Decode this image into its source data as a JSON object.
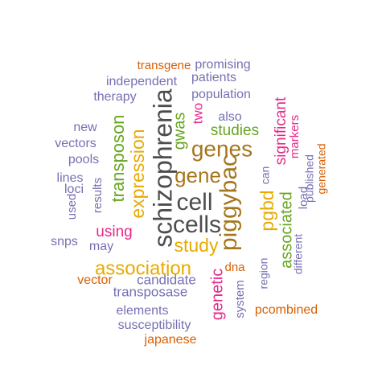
{
  "palette": {
    "gray": "#4D4D4D",
    "orange": "#D95F02",
    "purple": "#7570B3",
    "pink": "#E7298A",
    "green": "#66A61E",
    "gold": "#E6AB02",
    "brown": "#A6761D"
  },
  "words": [
    {
      "text": "schizophrenia",
      "color": "gray"
    },
    {
      "text": "cell",
      "color": "gray"
    },
    {
      "text": "cells",
      "color": "gray"
    },
    {
      "text": "piggybac",
      "color": "brown"
    },
    {
      "text": "genes",
      "color": "brown"
    },
    {
      "text": "gene",
      "color": "brown"
    },
    {
      "text": "association",
      "color": "gold"
    },
    {
      "text": "expression",
      "color": "gold"
    },
    {
      "text": "study",
      "color": "gold"
    },
    {
      "text": "pgbd",
      "color": "gold"
    },
    {
      "text": "transposon",
      "color": "green"
    },
    {
      "text": "studies",
      "color": "green"
    },
    {
      "text": "associated",
      "color": "green"
    },
    {
      "text": "gwas",
      "color": "green"
    },
    {
      "text": "significant",
      "color": "pink"
    },
    {
      "text": "genetic",
      "color": "pink"
    },
    {
      "text": "using",
      "color": "pink"
    },
    {
      "text": "two",
      "color": "pink"
    },
    {
      "text": "markers",
      "color": "pink"
    },
    {
      "text": "transgene",
      "color": "orange"
    },
    {
      "text": "promising",
      "color": "purple"
    },
    {
      "text": "patients",
      "color": "purple"
    },
    {
      "text": "independent",
      "color": "purple"
    },
    {
      "text": "population",
      "color": "purple"
    },
    {
      "text": "therapy",
      "color": "purple"
    },
    {
      "text": "also",
      "color": "purple"
    },
    {
      "text": "new",
      "color": "purple"
    },
    {
      "text": "vectors",
      "color": "purple"
    },
    {
      "text": "pools",
      "color": "purple"
    },
    {
      "text": "lines",
      "color": "purple"
    },
    {
      "text": "loci",
      "color": "purple"
    },
    {
      "text": "used",
      "color": "purple"
    },
    {
      "text": "results",
      "color": "purple"
    },
    {
      "text": "snps",
      "color": "purple"
    },
    {
      "text": "may",
      "color": "purple"
    },
    {
      "text": "vector",
      "color": "orange"
    },
    {
      "text": "candidate",
      "color": "purple"
    },
    {
      "text": "transposase",
      "color": "purple"
    },
    {
      "text": "elements",
      "color": "purple"
    },
    {
      "text": "susceptibility",
      "color": "purple"
    },
    {
      "text": "japanese",
      "color": "orange"
    },
    {
      "text": "system",
      "color": "purple"
    },
    {
      "text": "dna",
      "color": "orange"
    },
    {
      "text": "region",
      "color": "purple"
    },
    {
      "text": "different",
      "color": "purple"
    },
    {
      "text": "load",
      "color": "purple"
    },
    {
      "text": "can",
      "color": "purple"
    },
    {
      "text": "published",
      "color": "purple"
    },
    {
      "text": "generated",
      "color": "orange"
    },
    {
      "text": "pcombined",
      "color": "orange"
    }
  ]
}
